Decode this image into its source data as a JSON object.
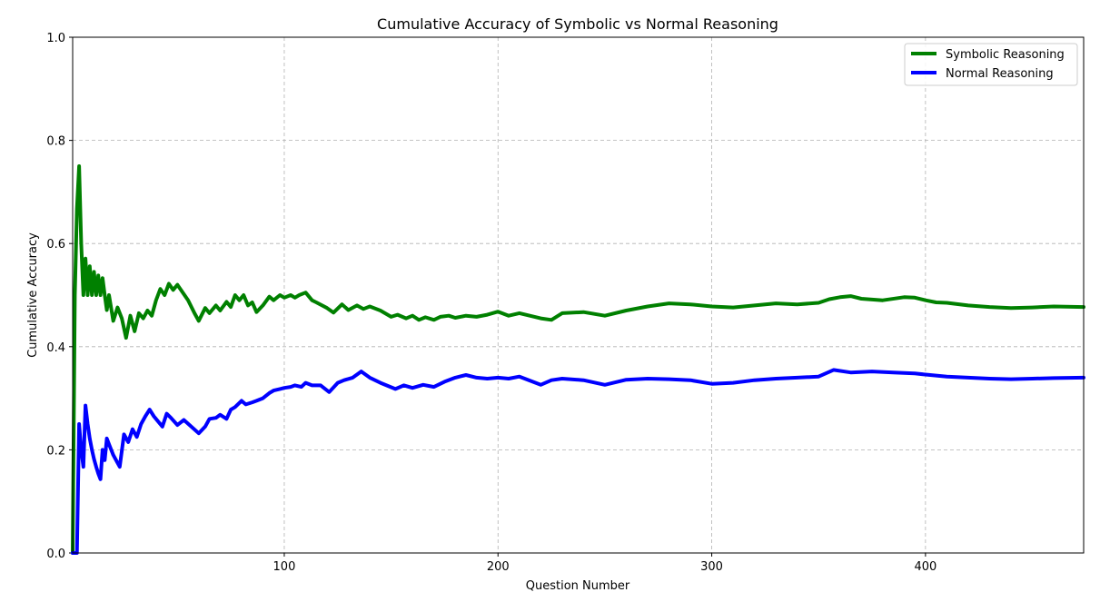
{
  "chart_data": {
    "type": "line",
    "title": "Cumulative Accuracy of Symbolic vs Normal Reasoning",
    "xlabel": "Question Number",
    "ylabel": "Cumulative Accuracy",
    "xlim": [
      1,
      474
    ],
    "ylim": [
      0,
      1
    ],
    "xticks": [
      100,
      200,
      300,
      400
    ],
    "yticks": [
      0.0,
      0.2,
      0.4,
      0.6,
      0.8,
      1.0
    ],
    "ytick_labels": [
      "0.0",
      "0.2",
      "0.4",
      "0.6",
      "0.8",
      "1.0"
    ],
    "grid": true,
    "legend_position": "top-right",
    "series": [
      {
        "name": "Symbolic Reasoning",
        "color": "#008000",
        "x": [
          1,
          2,
          3,
          4,
          5,
          6,
          7,
          8,
          9,
          10,
          11,
          12,
          13,
          14,
          15,
          16,
          17,
          18,
          20,
          22,
          24,
          26,
          28,
          30,
          32,
          34,
          36,
          38,
          40,
          42,
          44,
          46,
          48,
          50,
          55,
          58,
          60,
          63,
          65,
          68,
          70,
          73,
          75,
          77,
          79,
          81,
          83,
          85,
          87,
          90,
          93,
          95,
          98,
          100,
          103,
          105,
          107,
          110,
          113,
          115,
          120,
          123,
          127,
          130,
          134,
          137,
          140,
          145,
          150,
          153,
          157,
          160,
          163,
          166,
          170,
          173,
          177,
          180,
          185,
          190,
          195,
          200,
          205,
          210,
          220,
          225,
          230,
          240,
          250,
          260,
          270,
          280,
          290,
          300,
          310,
          320,
          330,
          340,
          350,
          355,
          360,
          365,
          370,
          380,
          390,
          395,
          400,
          405,
          410,
          420,
          430,
          440,
          450,
          460,
          474
        ],
        "values": [
          0.0,
          0.5,
          0.667,
          0.75,
          0.6,
          0.5,
          0.571,
          0.5,
          0.556,
          0.5,
          0.545,
          0.5,
          0.538,
          0.5,
          0.533,
          0.5,
          0.471,
          0.5,
          0.45,
          0.476,
          0.455,
          0.417,
          0.46,
          0.43,
          0.465,
          0.455,
          0.47,
          0.46,
          0.49,
          0.512,
          0.5,
          0.522,
          0.51,
          0.52,
          0.49,
          0.465,
          0.45,
          0.475,
          0.465,
          0.48,
          0.47,
          0.487,
          0.477,
          0.5,
          0.49,
          0.5,
          0.48,
          0.486,
          0.467,
          0.48,
          0.497,
          0.49,
          0.5,
          0.495,
          0.5,
          0.495,
          0.5,
          0.505,
          0.49,
          0.486,
          0.475,
          0.466,
          0.482,
          0.471,
          0.48,
          0.473,
          0.478,
          0.47,
          0.458,
          0.462,
          0.455,
          0.46,
          0.452,
          0.457,
          0.452,
          0.458,
          0.46,
          0.456,
          0.46,
          0.458,
          0.462,
          0.468,
          0.46,
          0.465,
          0.455,
          0.452,
          0.465,
          0.467,
          0.46,
          0.47,
          0.478,
          0.484,
          0.482,
          0.478,
          0.476,
          0.48,
          0.484,
          0.482,
          0.485,
          0.492,
          0.496,
          0.498,
          0.493,
          0.49,
          0.496,
          0.495,
          0.49,
          0.486,
          0.485,
          0.48,
          0.477,
          0.475,
          0.476,
          0.478,
          0.477
        ]
      },
      {
        "name": "Normal Reasoning",
        "color": "#0000ff",
        "x": [
          1,
          2,
          3,
          4,
          5,
          6,
          7,
          8,
          9,
          10,
          11,
          12,
          13,
          14,
          15,
          16,
          17,
          18,
          20,
          23,
          25,
          27,
          29,
          31,
          33,
          35,
          37,
          39,
          41,
          43,
          45,
          47,
          50,
          53,
          56,
          60,
          63,
          65,
          68,
          70,
          73,
          75,
          77,
          80,
          82,
          85,
          87,
          90,
          93,
          95,
          98,
          100,
          103,
          105,
          108,
          110,
          113,
          117,
          121,
          125,
          128,
          132,
          136,
          140,
          145,
          152,
          156,
          160,
          165,
          170,
          175,
          180,
          185,
          190,
          195,
          200,
          205,
          210,
          220,
          225,
          230,
          240,
          250,
          260,
          270,
          280,
          290,
          300,
          310,
          320,
          330,
          340,
          350,
          357,
          365,
          375,
          385,
          395,
          400,
          405,
          410,
          420,
          430,
          440,
          450,
          460,
          474
        ],
        "values": [
          0.0,
          0.0,
          0.0,
          0.25,
          0.2,
          0.167,
          0.286,
          0.25,
          0.222,
          0.2,
          0.182,
          0.167,
          0.154,
          0.143,
          0.2,
          0.18,
          0.222,
          0.211,
          0.19,
          0.167,
          0.23,
          0.215,
          0.24,
          0.225,
          0.25,
          0.265,
          0.278,
          0.265,
          0.255,
          0.245,
          0.27,
          0.262,
          0.248,
          0.258,
          0.247,
          0.232,
          0.245,
          0.26,
          0.262,
          0.268,
          0.26,
          0.278,
          0.283,
          0.295,
          0.288,
          0.292,
          0.295,
          0.3,
          0.31,
          0.315,
          0.318,
          0.32,
          0.322,
          0.325,
          0.322,
          0.33,
          0.325,
          0.325,
          0.312,
          0.33,
          0.335,
          0.34,
          0.352,
          0.34,
          0.33,
          0.318,
          0.325,
          0.32,
          0.326,
          0.322,
          0.332,
          0.34,
          0.345,
          0.34,
          0.338,
          0.34,
          0.338,
          0.342,
          0.326,
          0.335,
          0.338,
          0.335,
          0.326,
          0.336,
          0.338,
          0.337,
          0.335,
          0.328,
          0.33,
          0.335,
          0.338,
          0.34,
          0.342,
          0.355,
          0.35,
          0.352,
          0.35,
          0.348,
          0.346,
          0.344,
          0.342,
          0.34,
          0.338,
          0.337,
          0.338,
          0.339,
          0.34
        ]
      }
    ]
  }
}
